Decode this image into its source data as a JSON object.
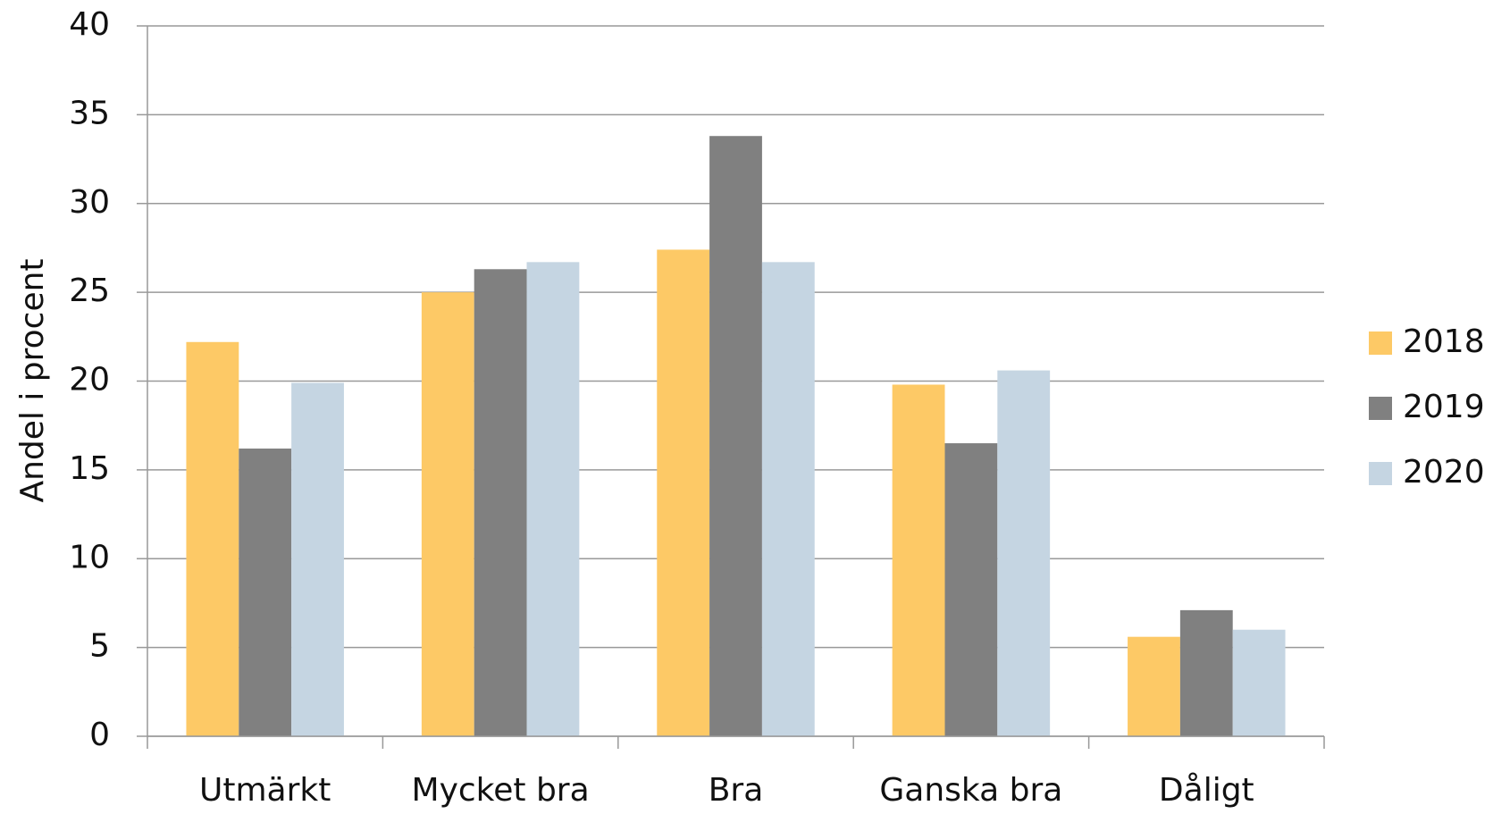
{
  "chart_data": {
    "type": "bar",
    "y_label": "Andel i procent",
    "categories": [
      "Utmärkt",
      "Mycket bra",
      "Bra",
      "Ganska bra",
      "Dåligt"
    ],
    "series": [
      {
        "name": "2018",
        "color": "#fdc966",
        "values": [
          22.2,
          25.0,
          27.4,
          19.8,
          5.6
        ]
      },
      {
        "name": "2019",
        "color": "#808080",
        "values": [
          16.2,
          26.3,
          33.8,
          16.5,
          7.1
        ]
      },
      {
        "name": "2020",
        "color": "#c5d5e2",
        "values": [
          19.9,
          26.7,
          26.7,
          20.6,
          6.0
        ]
      }
    ],
    "ylim": [
      0,
      40
    ],
    "yticks": [
      0,
      5,
      10,
      15,
      20,
      25,
      30,
      35,
      40
    ],
    "grid": true,
    "legend": "right"
  }
}
